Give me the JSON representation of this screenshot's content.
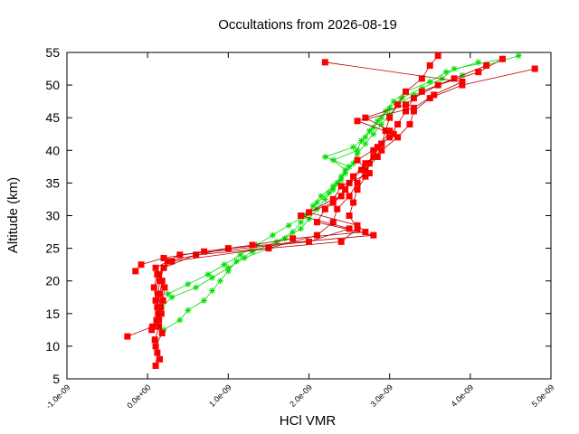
{
  "chart_data": {
    "type": "line",
    "title": "Occultations from 2026-08-19",
    "xlabel": "HCl VMR",
    "ylabel": "Altitude (km)",
    "xlim": [
      -1e-09,
      5e-09
    ],
    "ylim": [
      5,
      55
    ],
    "xticks": [
      "-1.0e-09",
      "0.0e+00",
      "1.0e-09",
      "2.0e-09",
      "3.0e-09",
      "4.0e-09",
      "5.0e-09"
    ],
    "yticks": [
      "5",
      "10",
      "15",
      "20",
      "25",
      "30",
      "35",
      "40",
      "45",
      "50",
      "55"
    ],
    "grid": false,
    "legend": "none",
    "colors": {
      "red_series": "#ff0000",
      "red_line": "#b00000",
      "green_series": "#00dd00"
    },
    "series": [
      {
        "color": "#ff0000",
        "marker": "square",
        "y": [
          7,
          9,
          11,
          13,
          15,
          17,
          19,
          21,
          23,
          25,
          27,
          29,
          31,
          33,
          35,
          37,
          39,
          41,
          43,
          45,
          47,
          49,
          51,
          53,
          54.5
        ],
        "x": [
          1e-10,
          1.2e-10,
          9e-11,
          1.4e-10,
          1.3e-10,
          1e-10,
          8e-11,
          1.2e-10,
          3e-10,
          1.5e-09,
          2.1e-09,
          2.3e-09,
          2.35e-09,
          2.5e-09,
          2.6e-09,
          2.7e-09,
          2.85e-09,
          2.9e-09,
          2.95e-09,
          3e-09,
          3.1e-09,
          3.2e-09,
          3.4e-09,
          3.5e-09,
          3.6e-09
        ]
      },
      {
        "color": "#ff0000",
        "marker": "square",
        "y": [
          8,
          10,
          12,
          14,
          16,
          18,
          20,
          22,
          24,
          26,
          28,
          30,
          32,
          34,
          36,
          38,
          40,
          42,
          44,
          46,
          48,
          50,
          52,
          54
        ],
        "x": [
          1.5e-10,
          1e-10,
          1.8e-10,
          1.1e-10,
          1.6e-10,
          1.3e-10,
          1.5e-10,
          2e-10,
          6e-10,
          2.4e-09,
          2.6e-09,
          2.5e-09,
          2.55e-09,
          2.6e-09,
          2.7e-09,
          2.75e-09,
          2.8e-09,
          3e-09,
          3.1e-09,
          3.2e-09,
          3.3e-09,
          3.6e-09,
          4.1e-09,
          4.4e-09
        ]
      },
      {
        "color": "#ff0000",
        "marker": "square",
        "y": [
          11.5,
          13,
          15,
          17,
          19,
          21,
          23,
          25,
          27,
          29,
          31,
          33,
          35,
          37,
          39,
          41,
          43,
          45,
          47,
          49,
          51,
          53
        ],
        "x": [
          -2.5e-10,
          6e-11,
          1.7e-10,
          1.9e-10,
          2.1e-10,
          1.4e-10,
          2.5e-10,
          1e-09,
          2.8e-09,
          2.1e-09,
          2.2e-09,
          2.4e-09,
          2.5e-09,
          2.65e-09,
          2.8e-09,
          2.9e-09,
          3e-09,
          2.7e-09,
          3.2e-09,
          3.4e-09,
          3.8e-09,
          4.2e-09
        ]
      },
      {
        "color": "#ff0000",
        "marker": "square",
        "y": [
          12.5,
          14,
          16,
          18,
          20,
          22,
          24,
          26,
          28,
          30,
          32,
          34,
          36,
          38,
          40,
          42,
          44,
          46,
          48,
          50,
          52.5
        ],
        "x": [
          5e-11,
          1.4e-10,
          1.2e-10,
          1.5e-10,
          1.8e-10,
          1e-10,
          4e-10,
          2e-09,
          2.5e-09,
          1.9e-09,
          2.3e-09,
          2.45e-09,
          2.55e-09,
          2.7e-09,
          2.9e-09,
          3.1e-09,
          3.25e-09,
          3.3e-09,
          3.5e-09,
          3.9e-09,
          4.8e-09
        ]
      },
      {
        "color": "#ff0000",
        "marker": "square",
        "y": [
          21.5,
          22.5,
          23.5,
          24.5,
          25.5,
          26.5,
          27.5,
          28.5,
          30.5,
          32.5,
          34.5,
          36.5,
          38.5,
          40.5,
          42.5,
          44.5,
          46.5,
          48.5,
          50.5,
          53.5
        ],
        "x": [
          -1.5e-10,
          -8e-11,
          2e-10,
          7e-10,
          1.3e-09,
          1.8e-09,
          2.7e-09,
          2.6e-09,
          2e-09,
          2.3e-09,
          2.4e-09,
          2.75e-09,
          2.6e-09,
          2.85e-09,
          3.05e-09,
          2.6e-09,
          3.3e-09,
          3.55e-09,
          3.9e-09,
          2.2e-09
        ]
      },
      {
        "color": "#00dd00",
        "marker": "star",
        "y": [
          12.5,
          14,
          15.5,
          17,
          18.5,
          20,
          21.5,
          23,
          24.5,
          26,
          27.5,
          29,
          30.5,
          32,
          33.5,
          35,
          36.5,
          38,
          39.5,
          41,
          42.5,
          44,
          45.5,
          47,
          48.5,
          50,
          51.5,
          53,
          54.5
        ],
        "x": [
          2e-10,
          4e-10,
          5e-10,
          7e-10,
          8e-10,
          9e-10,
          1e-09,
          1.1e-09,
          1.3e-09,
          1.6e-09,
          1.8e-09,
          1.9e-09,
          2e-09,
          2.1e-09,
          2.25e-09,
          2.35e-09,
          2.45e-09,
          2.55e-09,
          2.6e-09,
          2.7e-09,
          2.8e-09,
          2.9e-09,
          3e-09,
          3.1e-09,
          3.3e-09,
          3.6e-09,
          3.9e-09,
          4.2e-09,
          4.6e-09
        ]
      },
      {
        "color": "#00dd00",
        "marker": "star",
        "y": [
          16,
          17.5,
          19,
          20.5,
          22,
          23.5,
          25,
          26.5,
          28,
          29.5,
          31,
          32.5,
          34,
          35.5,
          37,
          38.5,
          40,
          41.5,
          43,
          44.5,
          46,
          47.5,
          49,
          50.5,
          52,
          53.5
        ],
        "x": [
          1.8e-10,
          3e-10,
          6e-10,
          8e-10,
          1e-09,
          1.2e-09,
          1.5e-09,
          1.7e-09,
          1.9e-09,
          2e-09,
          2.1e-09,
          2.2e-09,
          2.3e-09,
          2.4e-09,
          2.45e-09,
          2.3e-09,
          2.6e-09,
          2.65e-09,
          2.75e-09,
          2.85e-09,
          2.95e-09,
          3.05e-09,
          3.2e-09,
          3.5e-09,
          3.7e-09,
          4.1e-09
        ]
      },
      {
        "color": "#00dd00",
        "marker": "star",
        "y": [
          18,
          19.5,
          21,
          22.5,
          24,
          25.5,
          27,
          28.5,
          30,
          31.5,
          33,
          34.5,
          36,
          37.5,
          39,
          40.5,
          42,
          43.5,
          45,
          46.5,
          48,
          49.5,
          51,
          52.5,
          54
        ],
        "x": [
          2.5e-10,
          5e-10,
          7.5e-10,
          9.5e-10,
          1.15e-09,
          1.35e-09,
          1.55e-09,
          1.75e-09,
          1.95e-09,
          2.05e-09,
          2.15e-09,
          2.3e-09,
          2.4e-09,
          2.5e-09,
          2.2e-09,
          2.55e-09,
          2.7e-09,
          2.8e-09,
          2.9e-09,
          3e-09,
          3.15e-09,
          3.4e-09,
          3.65e-09,
          3.8e-09,
          4.4e-09
        ]
      }
    ]
  }
}
